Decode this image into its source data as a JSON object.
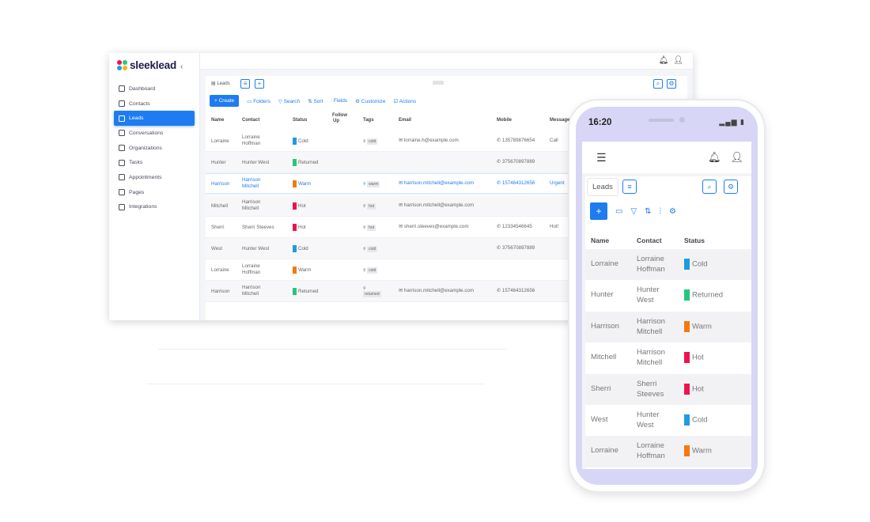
{
  "brand": {
    "name": "sleeklead",
    "collapse": "‹"
  },
  "nav": [
    {
      "label": "Dashboard",
      "icon": "dashboard-icon"
    },
    {
      "label": "Contacts",
      "icon": "contacts-icon"
    },
    {
      "label": "Leads",
      "icon": "leads-icon",
      "active": true
    },
    {
      "label": "Conversations",
      "icon": "chat-icon"
    },
    {
      "label": "Organizations",
      "icon": "building-icon"
    },
    {
      "label": "Tasks",
      "icon": "tasks-icon"
    },
    {
      "label": "Appointments",
      "icon": "calendar-icon"
    },
    {
      "label": "Pages",
      "icon": "pages-icon"
    },
    {
      "label": "Integrations",
      "icon": "integrations-icon"
    }
  ],
  "desktop": {
    "tab": "Leads",
    "toolbar": {
      "create": "+ Create",
      "folders": "Folders",
      "search": "Search",
      "sort": "Sort",
      "fields": "Fields",
      "customize": "Customize",
      "actions": "Actions"
    },
    "columns": {
      "name": "Name",
      "contact": "Contact",
      "status": "Status",
      "follow_up_1": "Follow",
      "follow_up_2": "Up",
      "tags": "Tags",
      "email": "Email",
      "mobile": "Mobile",
      "message": "Message"
    },
    "rows": [
      {
        "name": "Lorraine",
        "contact1": "Lorraine",
        "contact2": "Hoffman",
        "status": "Cold",
        "tag": "cold",
        "email": "lorraine.h@example.com",
        "mobile": "135789876654",
        "message": "Call"
      },
      {
        "name": "Hunter",
        "contact1": "Hunter West",
        "contact2": "",
        "status": "Returned",
        "tag": "",
        "email": "",
        "mobile": "375670897889",
        "message": ""
      },
      {
        "name": "Harrison",
        "contact1": "Harrison",
        "contact2": "Mitchell",
        "status": "Warm",
        "tag": "warm",
        "email": "harrison.mitchell@example.com",
        "mobile": "157464312656",
        "message": "Urgent"
      },
      {
        "name": "Mitchell",
        "contact1": "Harrison",
        "contact2": "Mitchell",
        "status": "Hot",
        "tag": "hot",
        "email": "harrison.mitchell@example.com",
        "mobile": "",
        "message": ""
      },
      {
        "name": "Sherri",
        "contact1": "Sherri Steeves",
        "contact2": "",
        "status": "Hot",
        "tag": "hot",
        "email": "sherri.steeves@example.com",
        "mobile": "12334546645",
        "message": "Hot!"
      },
      {
        "name": "West",
        "contact1": "Hunter West",
        "contact2": "",
        "status": "Cold",
        "tag": "cold",
        "email": "",
        "mobile": "375670897889",
        "message": ""
      },
      {
        "name": "Lorraine",
        "contact1": "Lorraine",
        "contact2": "Hoffman",
        "status": "Warm",
        "tag": "cold",
        "email": "",
        "mobile": "",
        "message": ""
      },
      {
        "name": "Harrison",
        "contact1": "Harrison",
        "contact2": "Mitchell",
        "status": "Returned",
        "tag": "returned",
        "email": "harrison.mitchell@example.com",
        "mobile": "157464312656",
        "message": ""
      }
    ]
  },
  "status_colors": {
    "Cold": "#1f9be0",
    "Returned": "#25c77a",
    "Warm": "#f5790f",
    "Hot": "#f0124f"
  },
  "phone": {
    "time": "16:20",
    "tab": "Leads",
    "columns": {
      "name": "Name",
      "contact": "Contact",
      "status": "Status"
    },
    "rows": [
      {
        "name": "Lorraine",
        "contact1": "Lorraine",
        "contact2": "Hoffman",
        "status": "Cold"
      },
      {
        "name": "Hunter",
        "contact1": "Hunter",
        "contact2": "West",
        "status": "Returned"
      },
      {
        "name": "Harrison",
        "contact1": "Harrison",
        "contact2": "Mitchell",
        "status": "Warm"
      },
      {
        "name": "Mitchell",
        "contact1": "Harrison",
        "contact2": "Mitchell",
        "status": "Hot"
      },
      {
        "name": "Sherri",
        "contact1": "Sherri",
        "contact2": "Steeves",
        "status": "Hot"
      },
      {
        "name": "West",
        "contact1": "Hunter",
        "contact2": "West",
        "status": "Cold"
      },
      {
        "name": "Lorraine",
        "contact1": "Lorraine",
        "contact2": "Hoffman",
        "status": "Warm"
      }
    ]
  }
}
